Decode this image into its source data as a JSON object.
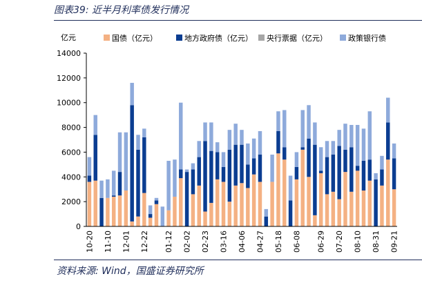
{
  "figure": {
    "title": "图表39:  近半月利率债发行情况",
    "source": "资料来源:  Wind，国盛证券研究所"
  },
  "colors": {
    "guozhai": "#f4b183",
    "difang": "#0b3d91",
    "yangxing": "#a6a6a6",
    "zhengce": "#8eaadb",
    "text": "#1f2d5a"
  },
  "chart_data": {
    "type": "bar",
    "stacked": true,
    "y_unit_label": "亿元",
    "ylim": [
      0,
      14000
    ],
    "yticks": [
      0,
      2000,
      4000,
      6000,
      8000,
      10000,
      12000,
      14000
    ],
    "ytick_labels": [
      "0",
      "2000",
      "4000",
      "6000",
      "8000",
      "10000",
      "12000",
      "14000"
    ],
    "x_tick_labels": [
      "10-20",
      "11-10",
      "12-01",
      "12-22",
      "01-12",
      "02-02",
      "02-23",
      "03-16",
      "04-06",
      "04-27",
      "05-18",
      "06-08",
      "06-29",
      "07-20",
      "08-10",
      "08-31",
      "09-21"
    ],
    "legend_position": "top",
    "series": [
      {
        "name": "国债（亿元）",
        "values": [
          3600,
          3700,
          0,
          2300,
          2400,
          2500,
          2900,
          400,
          800,
          2700,
          700,
          1800,
          0,
          1300,
          2400,
          3900,
          0,
          2600,
          3300,
          1200,
          1900,
          3800,
          3600,
          2000,
          3300,
          3500,
          3100,
          4200,
          3600,
          0,
          3600,
          5900,
          5400,
          0,
          3800,
          6200,
          4000,
          900,
          4300,
          2600,
          2800,
          2200,
          4400,
          2800,
          4500,
          2900,
          3700,
          0,
          3300,
          5400,
          3000
        ]
      },
      {
        "name": "地方政府债（亿元）",
        "values": [
          500,
          3700,
          2300,
          0,
          100,
          1900,
          0,
          9400,
          5400,
          4500,
          300,
          300,
          0,
          0,
          0,
          700,
          4400,
          2000,
          2300,
          5700,
          4200,
          2200,
          1200,
          4200,
          3300,
          3100,
          1900,
          1300,
          2200,
          800,
          0,
          1800,
          1000,
          2100,
          1000,
          200,
          3100,
          5700,
          200,
          3000,
          3000,
          4300,
          1800,
          3600,
          400,
          2400,
          1700,
          3800,
          1300,
          3000,
          2500
        ]
      },
      {
        "name": "央行票据（亿元）",
        "values": [
          0,
          0,
          0,
          0,
          0,
          0,
          0,
          0,
          0,
          0,
          0,
          0,
          0,
          0,
          0,
          0,
          0,
          0,
          0,
          0,
          0,
          0,
          0,
          0,
          0,
          0,
          0,
          0,
          0,
          0,
          0,
          0,
          0,
          0,
          0,
          0,
          0,
          0,
          0,
          0,
          0,
          0,
          0,
          0,
          0,
          0,
          0,
          0,
          0,
          0,
          0
        ]
      },
      {
        "name": "政策银行债",
        "values": [
          1500,
          1600,
          1400,
          1500,
          2000,
          3200,
          4700,
          1800,
          1200,
          700,
          700,
          200,
          1600,
          4000,
          3000,
          5400,
          200,
          500,
          1300,
          1500,
          2300,
          800,
          1200,
          1600,
          1700,
          1200,
          1700,
          1600,
          1900,
          600,
          2200,
          1600,
          3000,
          2000,
          1200,
          3000,
          2700,
          1800,
          1900,
          1300,
          1100,
          1300,
          2100,
          1800,
          3300,
          2600,
          3900,
          500,
          1100,
          2000,
          1200
        ]
      }
    ]
  }
}
